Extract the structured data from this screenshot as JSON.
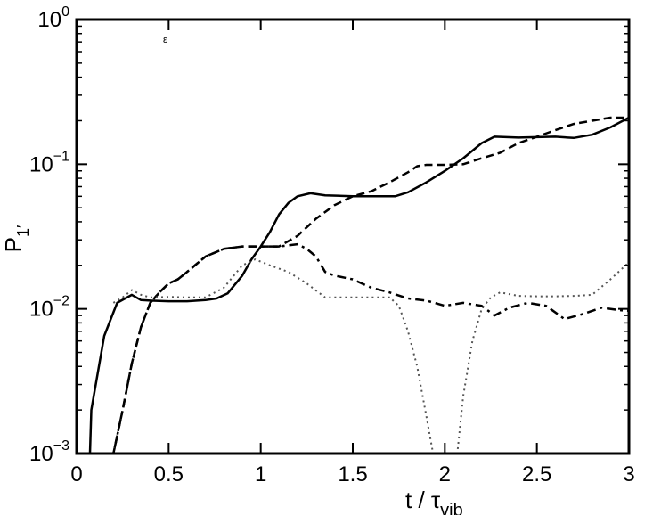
{
  "chart_data": {
    "type": "line",
    "title": "",
    "xlabel": "t / τ",
    "xlabel_sub": "vib",
    "ylabel": "P",
    "ylabel_sub": "1′",
    "annotation": "ε",
    "xlim": [
      0,
      3
    ],
    "ylim": [
      0.001,
      1
    ],
    "yscale": "log",
    "grid": false,
    "legend": "none",
    "x_ticks": [
      {
        "value": 0,
        "label": "0"
      },
      {
        "value": 0.5,
        "label": "0.5"
      },
      {
        "value": 1,
        "label": "1"
      },
      {
        "value": 1.5,
        "label": "1.5"
      },
      {
        "value": 2,
        "label": "2"
      },
      {
        "value": 2.5,
        "label": "2.5"
      },
      {
        "value": 3,
        "label": "3"
      }
    ],
    "y_ticks": [
      {
        "value": 1,
        "base": "10",
        "exp": "0"
      },
      {
        "value": 0.1,
        "base": "10",
        "exp": "−1"
      },
      {
        "value": 0.01,
        "base": "10",
        "exp": "−2"
      },
      {
        "value": 0.001,
        "base": "10",
        "exp": "−3"
      }
    ],
    "series": [
      {
        "style": "solid",
        "color": "#000000",
        "points": [
          [
            0.07,
            0.0008
          ],
          [
            0.08,
            0.002
          ],
          [
            0.15,
            0.0065
          ],
          [
            0.22,
            0.011
          ],
          [
            0.3,
            0.0125
          ],
          [
            0.35,
            0.0115
          ],
          [
            0.4,
            0.0114
          ],
          [
            0.5,
            0.0113
          ],
          [
            0.6,
            0.0113
          ],
          [
            0.7,
            0.0115
          ],
          [
            0.76,
            0.0118
          ],
          [
            0.82,
            0.0128
          ],
          [
            0.9,
            0.017
          ],
          [
            0.95,
            0.022
          ],
          [
            1.0,
            0.027
          ],
          [
            1.05,
            0.034
          ],
          [
            1.1,
            0.045
          ],
          [
            1.15,
            0.054
          ],
          [
            1.2,
            0.06
          ],
          [
            1.27,
            0.063
          ],
          [
            1.35,
            0.061
          ],
          [
            1.5,
            0.06
          ],
          [
            1.6,
            0.06
          ],
          [
            1.73,
            0.06
          ],
          [
            1.8,
            0.064
          ],
          [
            1.9,
            0.075
          ],
          [
            2.0,
            0.09
          ],
          [
            2.1,
            0.11
          ],
          [
            2.2,
            0.14
          ],
          [
            2.27,
            0.155
          ],
          [
            2.4,
            0.153
          ],
          [
            2.5,
            0.154
          ],
          [
            2.6,
            0.155
          ],
          [
            2.7,
            0.152
          ],
          [
            2.8,
            0.16
          ],
          [
            2.9,
            0.18
          ],
          [
            3.0,
            0.21
          ]
        ]
      },
      {
        "style": "dashed",
        "color": "#000000",
        "points": [
          [
            0.18,
            0.0008
          ],
          [
            0.2,
            0.001
          ],
          [
            0.25,
            0.002
          ],
          [
            0.3,
            0.0042
          ],
          [
            0.35,
            0.0075
          ],
          [
            0.4,
            0.011
          ],
          [
            0.45,
            0.013
          ],
          [
            0.5,
            0.015
          ],
          [
            0.55,
            0.016
          ],
          [
            0.6,
            0.018
          ],
          [
            0.7,
            0.023
          ],
          [
            0.8,
            0.026
          ],
          [
            0.9,
            0.027
          ],
          [
            1.0,
            0.027
          ],
          [
            1.1,
            0.027
          ],
          [
            1.2,
            0.032
          ],
          [
            1.3,
            0.042
          ],
          [
            1.4,
            0.052
          ],
          [
            1.5,
            0.06
          ],
          [
            1.6,
            0.065
          ],
          [
            1.7,
            0.075
          ],
          [
            1.8,
            0.088
          ],
          [
            1.85,
            0.097
          ],
          [
            1.9,
            0.099
          ],
          [
            2.0,
            0.099
          ],
          [
            2.1,
            0.1
          ],
          [
            2.2,
            0.11
          ],
          [
            2.3,
            0.12
          ],
          [
            2.4,
            0.14
          ],
          [
            2.5,
            0.155
          ],
          [
            2.6,
            0.172
          ],
          [
            2.7,
            0.19
          ],
          [
            2.8,
            0.2
          ],
          [
            2.9,
            0.21
          ],
          [
            3.0,
            0.21
          ]
        ]
      },
      {
        "style": "dashdot",
        "color": "#000000",
        "points": [
          [
            0.18,
            0.0008
          ],
          [
            0.2,
            0.001
          ],
          [
            0.25,
            0.002
          ],
          [
            0.3,
            0.0042
          ],
          [
            0.35,
            0.0075
          ],
          [
            0.4,
            0.011
          ],
          [
            0.45,
            0.013
          ],
          [
            0.5,
            0.015
          ],
          [
            0.55,
            0.016
          ],
          [
            0.6,
            0.018
          ],
          [
            0.7,
            0.023
          ],
          [
            0.8,
            0.026
          ],
          [
            0.9,
            0.027
          ],
          [
            1.0,
            0.027
          ],
          [
            1.1,
            0.027
          ],
          [
            1.2,
            0.028
          ],
          [
            1.25,
            0.026
          ],
          [
            1.3,
            0.023
          ],
          [
            1.35,
            0.018
          ],
          [
            1.4,
            0.017
          ],
          [
            1.5,
            0.016
          ],
          [
            1.6,
            0.014
          ],
          [
            1.7,
            0.013
          ],
          [
            1.8,
            0.0118
          ],
          [
            1.9,
            0.0114
          ],
          [
            2.0,
            0.0105
          ],
          [
            2.1,
            0.011
          ],
          [
            2.2,
            0.0105
          ],
          [
            2.27,
            0.009
          ],
          [
            2.35,
            0.0102
          ],
          [
            2.45,
            0.011
          ],
          [
            2.55,
            0.0105
          ],
          [
            2.65,
            0.0085
          ],
          [
            2.75,
            0.0092
          ],
          [
            2.85,
            0.0102
          ],
          [
            2.95,
            0.0098
          ],
          [
            3.0,
            0.0097
          ]
        ]
      },
      {
        "style": "dotted",
        "color": "#555555",
        "points": [
          [
            0.2,
            0.011
          ],
          [
            0.25,
            0.012
          ],
          [
            0.3,
            0.0135
          ],
          [
            0.35,
            0.0125
          ],
          [
            0.4,
            0.012
          ],
          [
            0.5,
            0.0121
          ],
          [
            0.6,
            0.012
          ],
          [
            0.7,
            0.012
          ],
          [
            0.8,
            0.014
          ],
          [
            0.9,
            0.02
          ],
          [
            0.97,
            0.022
          ],
          [
            1.05,
            0.02
          ],
          [
            1.15,
            0.018
          ],
          [
            1.25,
            0.015
          ],
          [
            1.35,
            0.012
          ],
          [
            1.5,
            0.012
          ],
          [
            1.6,
            0.012
          ],
          [
            1.7,
            0.012
          ],
          [
            1.75,
            0.0105
          ],
          [
            1.8,
            0.007
          ],
          [
            1.85,
            0.004
          ],
          [
            1.9,
            0.0018
          ],
          [
            1.95,
            0.0008
          ],
          [
            2.06,
            0.0008
          ],
          [
            2.1,
            0.0025
          ],
          [
            2.15,
            0.006
          ],
          [
            2.2,
            0.01
          ],
          [
            2.25,
            0.012
          ],
          [
            2.3,
            0.013
          ],
          [
            2.4,
            0.0123
          ],
          [
            2.5,
            0.0122
          ],
          [
            2.6,
            0.0122
          ],
          [
            2.7,
            0.0123
          ],
          [
            2.8,
            0.0125
          ],
          [
            2.9,
            0.016
          ],
          [
            3.0,
            0.021
          ]
        ]
      }
    ]
  }
}
